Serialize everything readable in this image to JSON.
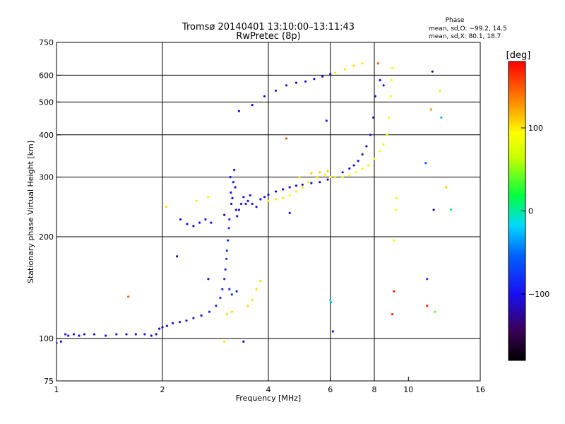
{
  "title_line1": "Tromsø 20140401 13:10:00–13:11:43",
  "title_line2": "RwPretec (8p)",
  "phase_info": {
    "heading": "Phase",
    "line_o": "mean, sd,O: −99.2, 14.5",
    "line_x": "mean, sd,X:  80.1, 18.7"
  },
  "colorbar": {
    "label": "[deg]",
    "ticks": [
      {
        "value": 100,
        "text": "100"
      },
      {
        "value": 0,
        "text": "0"
      },
      {
        "value": -100,
        "text": "−100"
      }
    ],
    "min": -180,
    "max": 180
  },
  "colors": {
    "frame": "#000000",
    "grid": "#000000",
    "background": "#ffffff"
  },
  "chart_data": {
    "type": "scatter",
    "xlabel": "Frequency [MHz]",
    "ylabel": "Stationary phase Virtual Height [km]",
    "xscale": "log",
    "yscale": "log",
    "xlim": [
      1,
      16
    ],
    "ylim": [
      75,
      750
    ],
    "grid": true,
    "x_ticks": [
      {
        "value": 1,
        "text": "1"
      },
      {
        "value": 2,
        "text": "2"
      },
      {
        "value": 4,
        "text": "4"
      },
      {
        "value": 6,
        "text": "6"
      },
      {
        "value": 8,
        "text": "8"
      },
      {
        "value": 10,
        "text": "10"
      },
      {
        "value": 16,
        "text": "16"
      }
    ],
    "x_grid": [
      2,
      4,
      6,
      8
    ],
    "y_ticks": [
      {
        "value": 75,
        "text": "75"
      },
      {
        "value": 100,
        "text": "100"
      },
      {
        "value": 200,
        "text": "200"
      },
      {
        "value": 300,
        "text": "300"
      },
      {
        "value": 400,
        "text": "400"
      },
      {
        "value": 500,
        "text": "500"
      },
      {
        "value": 600,
        "text": "600"
      },
      {
        "value": 750,
        "text": "750"
      }
    ],
    "y_grid": [
      100,
      200,
      300,
      400,
      500,
      600
    ],
    "series": [
      {
        "points": [
          [
            1.0,
            97,
            -100
          ],
          [
            1.03,
            98,
            -100
          ],
          [
            1.06,
            103,
            -100
          ],
          [
            1.08,
            102,
            -100
          ],
          [
            1.12,
            103,
            -105
          ],
          [
            1.16,
            102,
            -100
          ],
          [
            1.2,
            103,
            -100
          ],
          [
            1.28,
            103,
            -100
          ],
          [
            1.38,
            102,
            -100
          ],
          [
            1.48,
            103,
            -100
          ],
          [
            1.58,
            103,
            -100
          ],
          [
            1.68,
            103,
            -100
          ],
          [
            1.78,
            103,
            -100
          ],
          [
            1.86,
            102,
            -110
          ],
          [
            1.92,
            103,
            -110
          ],
          [
            1.96,
            107,
            -110
          ],
          [
            2.0,
            108,
            -110
          ],
          [
            2.06,
            109,
            -110
          ],
          [
            2.14,
            111,
            -110
          ],
          [
            2.24,
            112,
            -95
          ],
          [
            2.34,
            113,
            -95
          ],
          [
            2.45,
            115,
            -95
          ],
          [
            2.58,
            117,
            -95
          ],
          [
            2.72,
            120,
            -95
          ],
          [
            2.84,
            125,
            -90
          ],
          [
            2.92,
            132,
            -90
          ],
          [
            2.96,
            140,
            -90
          ],
          [
            3.0,
            150,
            -85
          ],
          [
            3.02,
            160,
            -85
          ],
          [
            3.04,
            172,
            -80
          ],
          [
            3.05,
            182,
            -80
          ],
          [
            3.07,
            195,
            -80
          ],
          [
            3.09,
            212,
            -80
          ],
          [
            3.1,
            225,
            -80
          ],
          [
            3.12,
            300,
            -105
          ],
          [
            3.13,
            270,
            -105
          ],
          [
            3.14,
            250,
            -105
          ],
          [
            3.16,
            260,
            -100
          ],
          [
            3.18,
            290,
            -105
          ],
          [
            3.2,
            315,
            -105
          ],
          [
            3.22,
            280,
            -110
          ],
          [
            3.24,
            240,
            -105
          ],
          [
            3.26,
            230,
            -105
          ],
          [
            3.3,
            240,
            -105
          ],
          [
            3.35,
            250,
            -105
          ],
          [
            3.4,
            262,
            -100
          ],
          [
            3.45,
            250,
            -100
          ],
          [
            3.5,
            255,
            -100
          ],
          [
            3.55,
            265,
            -100
          ],
          [
            3.6,
            250,
            -100
          ],
          [
            3.7,
            245,
            -100
          ],
          [
            3.8,
            258,
            -105
          ],
          [
            3.9,
            262,
            -100
          ],
          [
            4.0,
            266,
            -110
          ],
          [
            4.2,
            272,
            -110
          ],
          [
            4.4,
            276,
            -110
          ],
          [
            4.6,
            280,
            -110
          ],
          [
            4.8,
            283,
            -110
          ],
          [
            5.0,
            285,
            -110
          ],
          [
            5.3,
            288,
            -110
          ],
          [
            5.6,
            290,
            -110
          ],
          [
            5.9,
            295,
            -110
          ],
          [
            6.2,
            300,
            -105
          ],
          [
            6.5,
            310,
            -105
          ],
          [
            6.8,
            318,
            -105
          ],
          [
            7.0,
            325,
            -105
          ],
          [
            7.2,
            335,
            -105
          ],
          [
            7.4,
            350,
            -105
          ],
          [
            7.6,
            370,
            -110
          ],
          [
            7.8,
            400,
            -110
          ],
          [
            7.95,
            450,
            -115
          ],
          [
            8.05,
            520,
            -120
          ],
          [
            2.25,
            225,
            -100
          ],
          [
            2.35,
            218,
            -100
          ],
          [
            2.45,
            215,
            -100
          ],
          [
            2.55,
            220,
            -100
          ],
          [
            2.65,
            225,
            -100
          ],
          [
            2.75,
            220,
            -100
          ],
          [
            3.3,
            470,
            -110
          ],
          [
            3.6,
            490,
            -110
          ],
          [
            3.9,
            520,
            -110
          ],
          [
            4.2,
            540,
            -110
          ],
          [
            4.5,
            560,
            -105
          ],
          [
            4.8,
            570,
            -105
          ],
          [
            5.1,
            575,
            -105
          ],
          [
            5.4,
            585,
            -105
          ],
          [
            5.7,
            595,
            -105
          ],
          [
            6.0,
            605,
            -110
          ],
          [
            3.1,
            140,
            -80
          ],
          [
            3.15,
            135,
            -80
          ],
          [
            3.25,
            138,
            -80
          ],
          [
            2.2,
            175,
            -115
          ],
          [
            2.7,
            150,
            -115
          ],
          [
            3.0,
            232,
            -115
          ],
          [
            3.4,
            98,
            -120
          ],
          [
            4.6,
            235,
            -110
          ],
          [
            5.85,
            440,
            -90
          ],
          [
            6.1,
            105,
            -110
          ],
          [
            6.0,
            130,
            -20
          ],
          [
            8.3,
            580,
            -110
          ],
          [
            8.5,
            560,
            -110
          ],
          [
            11.2,
            330,
            -60
          ],
          [
            11.3,
            150,
            -80
          ],
          [
            12.4,
            450,
            -30
          ]
        ]
      },
      {
        "points": [
          [
            4.0,
            255,
            100
          ],
          [
            4.2,
            258,
            100
          ],
          [
            4.4,
            260,
            100
          ],
          [
            4.6,
            265,
            95
          ],
          [
            4.8,
            272,
            100
          ],
          [
            5.0,
            280,
            105
          ],
          [
            5.2,
            290,
            100
          ],
          [
            5.5,
            300,
            105
          ],
          [
            5.8,
            305,
            100
          ],
          [
            6.0,
            300,
            95
          ],
          [
            6.2,
            300,
            95
          ],
          [
            6.5,
            300,
            95
          ],
          [
            6.8,
            304,
            95
          ],
          [
            7.1,
            310,
            95
          ],
          [
            7.4,
            318,
            90
          ],
          [
            7.7,
            325,
            95
          ],
          [
            8.0,
            340,
            90
          ],
          [
            8.3,
            358,
            85
          ],
          [
            8.5,
            375,
            80
          ],
          [
            8.7,
            400,
            80
          ],
          [
            8.8,
            450,
            85
          ],
          [
            8.9,
            520,
            90
          ],
          [
            8.95,
            580,
            95
          ],
          [
            9.0,
            630,
            95
          ],
          [
            5.3,
            308,
            110
          ],
          [
            5.6,
            310,
            110
          ],
          [
            5.9,
            312,
            110
          ],
          [
            4.9,
            300,
            105
          ],
          [
            6.2,
            610,
            100
          ],
          [
            6.6,
            625,
            100
          ],
          [
            7.0,
            640,
            105
          ],
          [
            7.4,
            650,
            100
          ],
          [
            3.05,
            118,
            105
          ],
          [
            3.15,
            120,
            105
          ],
          [
            3.5,
            125,
            105
          ],
          [
            3.6,
            130,
            105
          ],
          [
            3.7,
            140,
            105
          ],
          [
            3.8,
            148,
            105
          ],
          [
            2.5,
            255,
            100
          ],
          [
            2.7,
            262,
            100
          ],
          [
            2.05,
            245,
            100
          ],
          [
            9.1,
            195,
            90
          ],
          [
            9.2,
            240,
            90
          ],
          [
            9.25,
            260,
            95
          ],
          [
            3.0,
            98,
            100
          ],
          [
            12.3,
            540,
            70
          ],
          [
            12.8,
            280,
            110
          ]
        ]
      },
      {
        "points": [
          [
            1.6,
            133,
            150
          ],
          [
            4.5,
            390,
            150
          ],
          [
            9.0,
            118,
            170
          ],
          [
            9.1,
            138,
            170
          ],
          [
            11.3,
            125,
            170
          ],
          [
            11.6,
            475,
            130
          ],
          [
            11.8,
            240,
            -130
          ],
          [
            11.7,
            615,
            -140
          ],
          [
            8.2,
            650,
            150
          ]
        ]
      },
      {
        "points": [
          [
            13.2,
            240,
            10
          ],
          [
            11.9,
            120,
            40
          ],
          [
            6.02,
            128,
            -30
          ]
        ]
      }
    ]
  }
}
